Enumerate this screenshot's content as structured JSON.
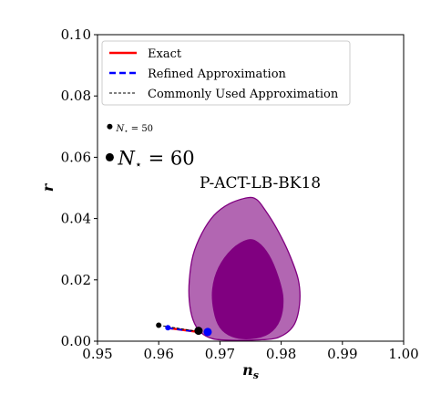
{
  "chart_data": {
    "type": "scatter",
    "xlabel": "n",
    "xlabel_sub": "s",
    "ylabel": "r",
    "xlim": [
      0.95,
      1.0
    ],
    "ylim": [
      0.0,
      0.1
    ],
    "x_ticks": [
      "0.95",
      "0.96",
      "0.97",
      "0.98",
      "0.99",
      "1.00"
    ],
    "y_ticks": [
      "0.00",
      "0.02",
      "0.04",
      "0.06",
      "0.08",
      "0.10"
    ],
    "legend": {
      "position": "top-left",
      "entries": [
        {
          "label": "Exact",
          "color": "#ff0000",
          "style": "solid"
        },
        {
          "label": "Refined Approximation",
          "color": "#0000ff",
          "style": "dashed"
        },
        {
          "label": "Commonly Used Approximation",
          "color": "#000000",
          "style": "dashed"
        }
      ]
    },
    "marker_key": [
      {
        "label": "N",
        "label_sub": "⋆",
        "label_suffix": " = 50",
        "y": 0.07
      },
      {
        "label": "N",
        "label_sub": "⋆",
        "label_suffix": " = 60",
        "y": 0.06
      }
    ],
    "region": {
      "label": "P-ACT-LB-BK18",
      "color": "#800080",
      "outer_fill": "#b266b2",
      "inner_fill": "#800080",
      "outer_contour": [
        [
          0.9745,
          0.0468
        ],
        [
          0.9715,
          0.0448
        ],
        [
          0.969,
          0.041
        ],
        [
          0.967,
          0.035
        ],
        [
          0.9656,
          0.028
        ],
        [
          0.965,
          0.02
        ],
        [
          0.965,
          0.013
        ],
        [
          0.9656,
          0.007
        ],
        [
          0.9668,
          0.003
        ],
        [
          0.9688,
          0.0008
        ],
        [
          0.972,
          0.0003
        ],
        [
          0.976,
          0.0004
        ],
        [
          0.9795,
          0.0012
        ],
        [
          0.982,
          0.005
        ],
        [
          0.983,
          0.012
        ],
        [
          0.9828,
          0.02
        ],
        [
          0.9812,
          0.029
        ],
        [
          0.9792,
          0.037
        ],
        [
          0.9773,
          0.043
        ],
        [
          0.976,
          0.0462
        ]
      ],
      "inner_contour": [
        [
          0.9745,
          0.033
        ],
        [
          0.972,
          0.03
        ],
        [
          0.9698,
          0.024
        ],
        [
          0.9688,
          0.017
        ],
        [
          0.969,
          0.01
        ],
        [
          0.97,
          0.0045
        ],
        [
          0.972,
          0.0015
        ],
        [
          0.975,
          0.0008
        ],
        [
          0.978,
          0.0025
        ],
        [
          0.9798,
          0.007
        ],
        [
          0.9803,
          0.014
        ],
        [
          0.9795,
          0.021
        ],
        [
          0.978,
          0.028
        ],
        [
          0.9762,
          0.0322
        ]
      ]
    },
    "series": [
      {
        "name": "Exact",
        "color": "#ff0000",
        "points": [
          [
            0.9615,
            0.0043
          ],
          [
            0.9665,
            0.003
          ]
        ]
      },
      {
        "name": "Refined Approximation",
        "color": "#0000ff",
        "points": [
          [
            0.9615,
            0.0043
          ],
          [
            0.9665,
            0.003
          ]
        ]
      },
      {
        "name": "Commonly Used Approximation",
        "color": "#000000",
        "points": [
          [
            0.96,
            0.0052
          ],
          [
            0.966,
            0.0033
          ]
        ]
      }
    ],
    "markers": [
      {
        "x": 0.96,
        "y": 0.0052,
        "color": "#000000",
        "size": "small"
      },
      {
        "x": 0.9615,
        "y": 0.0044,
        "color": "#0000ff",
        "size": "small"
      },
      {
        "x": 0.9665,
        "y": 0.0034,
        "color": "#000000",
        "size": "large"
      },
      {
        "x": 0.968,
        "y": 0.003,
        "color": "#0000ff",
        "size": "large"
      }
    ]
  }
}
